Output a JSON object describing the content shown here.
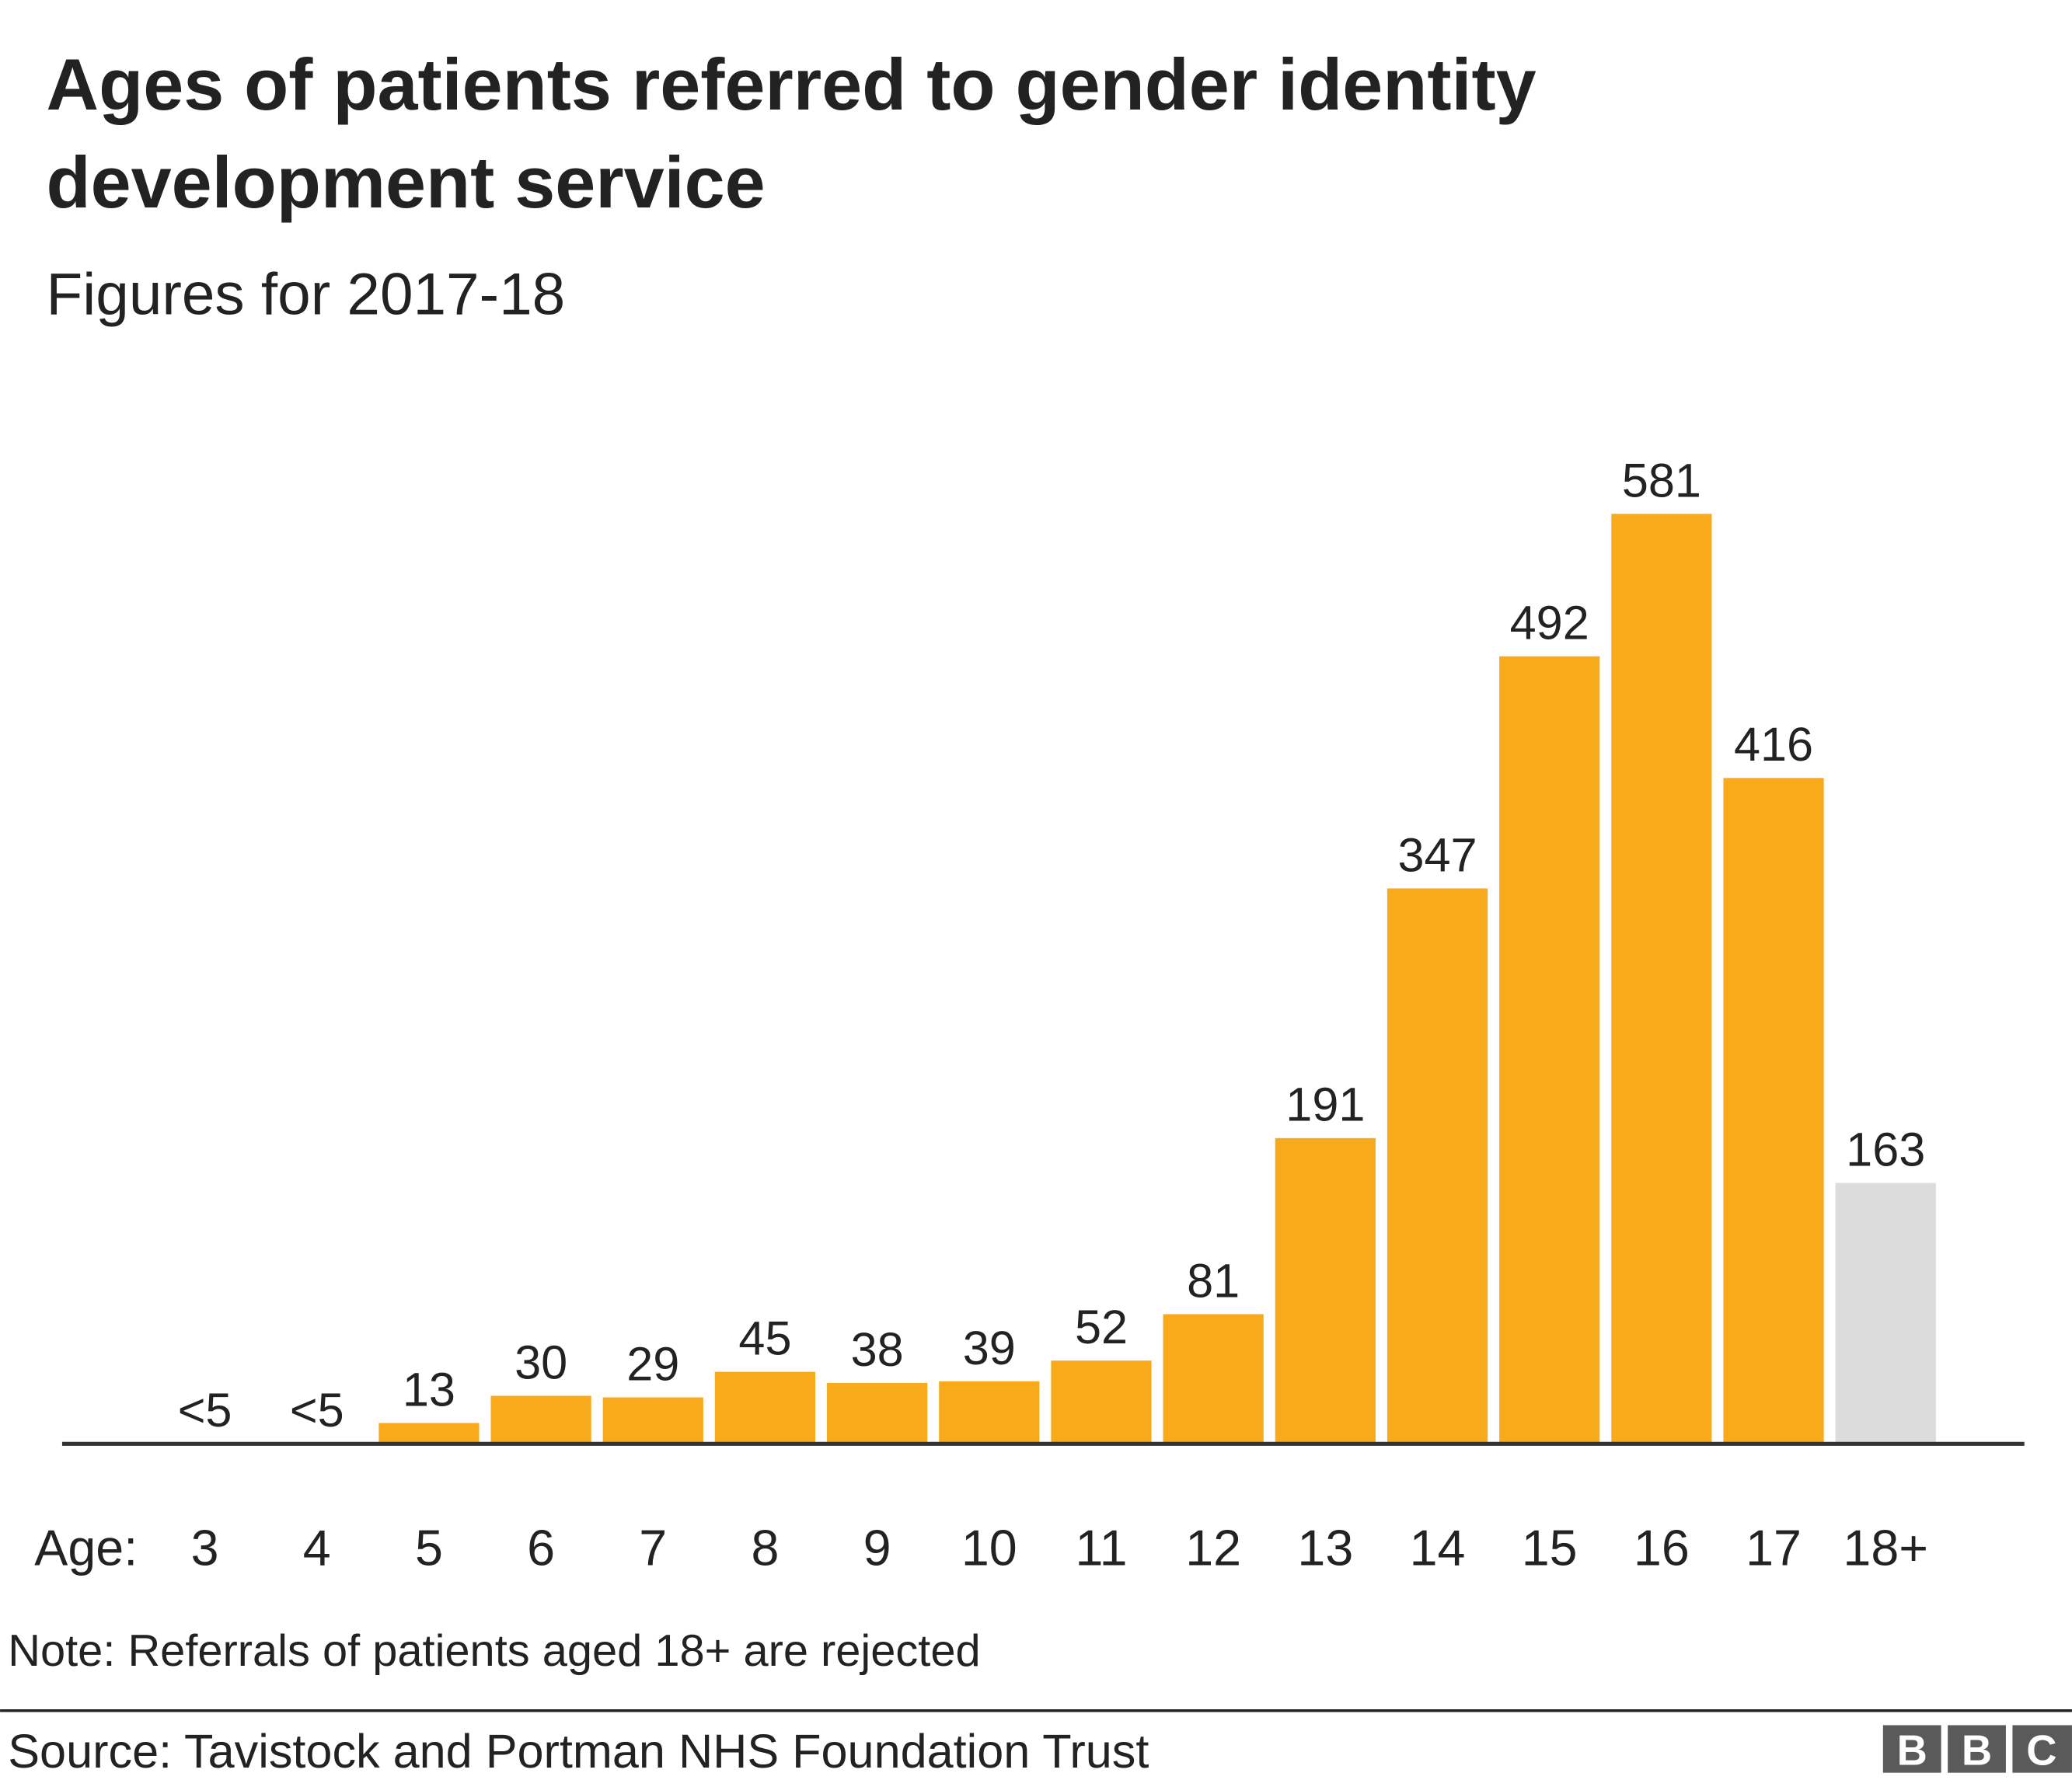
{
  "chart_data": {
    "type": "bar",
    "title": "Ages of patients referred to gender identity development service",
    "title_lines": [
      "Ages of patients referred to gender identity",
      "development service"
    ],
    "subtitle": "Figures for 2017-18",
    "x_label": "Age:",
    "categories": [
      "3",
      "4",
      "5",
      "6",
      "7",
      "8",
      "9",
      "10",
      "11",
      "12",
      "13",
      "14",
      "15",
      "16",
      "17",
      "18+"
    ],
    "values": [
      null,
      null,
      13,
      30,
      29,
      45,
      38,
      39,
      52,
      81,
      191,
      347,
      492,
      581,
      416,
      163
    ],
    "value_labels": [
      "<5",
      "<5",
      "13",
      "30",
      "29",
      "45",
      "38",
      "39",
      "52",
      "81",
      "191",
      "347",
      "492",
      "581",
      "416",
      "163"
    ],
    "colors": [
      "#f9aa1b",
      "#f9aa1b",
      "#f9aa1b",
      "#f9aa1b",
      "#f9aa1b",
      "#f9aa1b",
      "#f9aa1b",
      "#f9aa1b",
      "#f9aa1b",
      "#f9aa1b",
      "#f9aa1b",
      "#f9aa1b",
      "#f9aa1b",
      "#f9aa1b",
      "#f9aa1b",
      "#dcdcdc"
    ],
    "ylim": [
      0,
      600
    ],
    "note": "Note: Referrals of patients aged 18+ are rejected",
    "source": "Source: Tavistock and Portman NHS Foundation Trust",
    "logo": [
      "B",
      "B",
      "C"
    ]
  }
}
